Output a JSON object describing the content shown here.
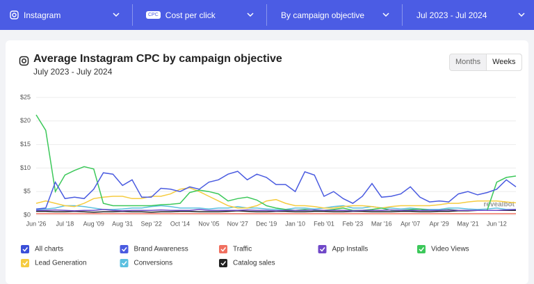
{
  "filters": [
    {
      "label": "Instagram"
    },
    {
      "badge": "CPC",
      "label": "Cost per click"
    },
    {
      "label": "By campaign objective"
    },
    {
      "label": "Jul 2023 - Jul 2024"
    }
  ],
  "view_toggle": {
    "options": [
      "Months",
      "Weeks"
    ],
    "active": 1
  },
  "legend_all": "All charts",
  "watermark": "revealbot",
  "chart_data": {
    "type": "line",
    "title": "Average Instagram CPC by campaign objective",
    "subtitle": "July 2023 - July 2024",
    "categories": [
      "Jun '26",
      null,
      null,
      "Jul '18",
      null,
      null,
      "Aug '09",
      null,
      null,
      "Aug '31",
      null,
      null,
      "Sep '22",
      null,
      null,
      "Oct '14",
      null,
      null,
      "Nov '05",
      null,
      null,
      "Nov '27",
      null,
      null,
      "Dec '19",
      null,
      null,
      "Jan '10",
      null,
      null,
      "Feb '01",
      null,
      null,
      "Feb '23",
      null,
      null,
      "Mar '16",
      null,
      null,
      "Apr '07",
      null,
      null,
      "Apr '29",
      null,
      null,
      "May '21",
      null,
      null,
      "Jun '12",
      null,
      null
    ],
    "series": [
      {
        "name": "Brand Awareness",
        "color": "#4a5be0",
        "values": [
          1.3,
          1.5,
          7,
          3.5,
          3.8,
          3.5,
          5.5,
          9,
          8.7,
          6.3,
          7.5,
          3.8,
          3.8,
          5.7,
          5.5,
          5,
          6,
          5.5,
          7,
          7.5,
          8.7,
          9.3,
          7.5,
          8.7,
          8,
          6.5,
          6.5,
          5,
          9.2,
          8.5,
          4,
          5,
          3.5,
          2.5,
          4,
          6.7,
          3.8,
          4,
          4.5,
          6,
          3.8,
          2.8,
          3,
          2.8,
          4.5,
          5,
          4.3,
          4.8,
          5.5,
          7.5,
          6
        ]
      },
      {
        "name": "Traffic",
        "color": "#f07060",
        "values": [
          0.3,
          0.3,
          0.3,
          0.3,
          0.3,
          0.3,
          0.3,
          0.3,
          0.3,
          0.3,
          0.3,
          0.3,
          0.3,
          0.3,
          0.3,
          0.3,
          0.3,
          0.3,
          0.3,
          0.3,
          0.3,
          0.3,
          0.3,
          0.3,
          0.3,
          0.3,
          0.3,
          0.3,
          0.3,
          0.3,
          0.3,
          0.3,
          0.3,
          0.3,
          0.3,
          0.3,
          0.3,
          0.3,
          0.3,
          0.3,
          0.3,
          0.3,
          0.3,
          0.3,
          0.3,
          0.3,
          0.3,
          0.3,
          0.3,
          0.3,
          0.3
        ]
      },
      {
        "name": "App Installs",
        "color": "#7048c8",
        "values": [
          1,
          1,
          1.1,
          1,
          0.9,
          1,
          1,
          1.2,
          1,
          0.9,
          1,
          1,
          1,
          1.1,
          1,
          1,
          1,
          1.2,
          1,
          1,
          1,
          1,
          1.1,
          1,
          1,
          0.9,
          1,
          1,
          1,
          1.1,
          1,
          1,
          1,
          0.9,
          1,
          1,
          1,
          1.1,
          1,
          1,
          1,
          1,
          1,
          1.1,
          1,
          1,
          1,
          1,
          1,
          1.1,
          1.2
        ]
      },
      {
        "name": "Video Views",
        "color": "#3cc85a",
        "values": [
          21.3,
          18,
          5,
          8.5,
          9.5,
          10.3,
          9.8,
          2.5,
          2,
          2,
          2,
          2,
          2,
          2.2,
          2.3,
          2.5,
          4.8,
          5.3,
          5,
          4.5,
          3,
          3.5,
          3.8,
          3.2,
          2,
          1.5,
          1.2,
          1,
          1.2,
          1,
          1,
          1.2,
          1.5,
          1,
          1,
          1.2,
          1.5,
          1,
          1,
          1.2,
          1.3,
          1,
          1,
          1.2,
          1,
          1,
          1,
          1,
          7,
          8,
          8.3
        ]
      },
      {
        "name": "Lead Generation",
        "color": "#f5cc40",
        "values": [
          2.5,
          3,
          2.5,
          2,
          1.8,
          2.5,
          3.5,
          3.8,
          4,
          4,
          3.5,
          3.5,
          4,
          4,
          4.5,
          5.5,
          5.8,
          5,
          4,
          3,
          2,
          1.5,
          1.5,
          2,
          3,
          3.3,
          2.5,
          2,
          2,
          1.8,
          1.5,
          1.5,
          1.8,
          2,
          2,
          1.8,
          1.5,
          1.8,
          2,
          2,
          2,
          2,
          2.2,
          2.5,
          2.5,
          2.8,
          3,
          3,
          3,
          2.8,
          2.6
        ]
      },
      {
        "name": "Conversions",
        "color": "#5bc0e0",
        "values": [
          1.2,
          1.3,
          1.5,
          2,
          2,
          1.8,
          1.5,
          1.2,
          1.2,
          1.3,
          1.5,
          1.5,
          1.8,
          2,
          1.8,
          1.5,
          1.5,
          1.5,
          1.3,
          1.5,
          1.5,
          1.8,
          1.5,
          1.5,
          1.3,
          1.2,
          1.2,
          1.5,
          1.5,
          1.3,
          1.5,
          1.8,
          2,
          1.5,
          1.5,
          1.8,
          1.5,
          1.5,
          1.3,
          1.5,
          1.3,
          1.2,
          1.2,
          1.5,
          1.5,
          1.3,
          1.2,
          1.3,
          1.5,
          1.2,
          1.2
        ]
      },
      {
        "name": "Catalog sales",
        "color": "#222222",
        "values": [
          0.8,
          0.8,
          0.7,
          0.7,
          0.8,
          0.7,
          0.6,
          0.7,
          0.7,
          0.8,
          0.7,
          0.7,
          0.6,
          0.7,
          0.7,
          0.8,
          0.8,
          0.7,
          0.7,
          0.7,
          0.8,
          0.9,
          0.8,
          0.7,
          0.7,
          0.8,
          0.8,
          0.7,
          0.7,
          0.8,
          0.8,
          0.7,
          0.7,
          0.8,
          0.8,
          0.7,
          0.7,
          0.7,
          0.8,
          0.8,
          0.7,
          0.7,
          0.8,
          0.8,
          0.9,
          0.9,
          1,
          1,
          1,
          1,
          1
        ]
      }
    ],
    "ylim": [
      0,
      25
    ],
    "yticks": [
      {
        "value": 0,
        "label": "$0"
      },
      {
        "value": 5,
        "label": "$5"
      },
      {
        "value": 10,
        "label": "$10"
      },
      {
        "value": 15,
        "label": "$15"
      },
      {
        "value": 20,
        "label": "$20"
      },
      {
        "value": 25,
        "label": "$25"
      }
    ],
    "grid": true
  }
}
